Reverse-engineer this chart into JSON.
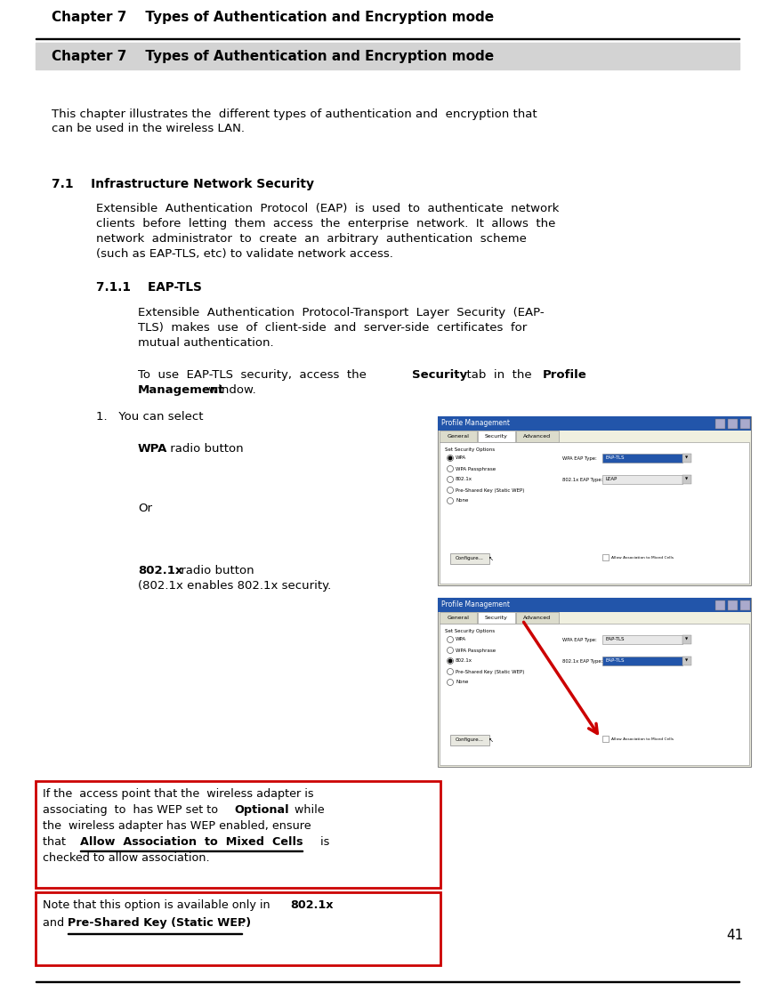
{
  "page_width": 8.71,
  "page_height": 11.14,
  "dpi": 100,
  "bg_color": "#ffffff",
  "header_title": "Chapter 7    Types of Authentication and Encryption mode",
  "chapter_bar_color": "#d3d3d3",
  "chapter_bar_text": "Chapter 7    Types of Authentication and Encryption mode",
  "intro_text_line1": "This chapter illustrates the  different types of authentication and  encryption that",
  "intro_text_line2": "can be used in the wireless LAN.",
  "section_71_title": "7.1    Infrastructure Network Security",
  "section_71_body_lines": [
    "Extensible  Authentication  Protocol  (EAP)  is  used  to  authenticate  network",
    "clients  before  letting  them  access  the  enterprise  network.  It  allows  the",
    "network  administrator  to  create  an  arbitrary  authentication  scheme",
    "(such as EAP-TLS, etc) to validate network access."
  ],
  "section_711_title": "7.1.1    EAP-TLS",
  "section_711_body1_lines": [
    "Extensible  Authentication  Protocol-Transport  Layer  Security  (EAP-",
    "TLS)  makes  use  of  client-side  and  server-side  certificates  for",
    "mutual authentication."
  ],
  "item1_text": "1.   You can select",
  "wpa_label": "WPA",
  "wpa_rest": " radio button",
  "or_text": "Or",
  "dot802_label": "802.1x",
  "dot802_rest": " radio button",
  "dot802_line2": "(802.1x enables 802.1x security.",
  "note1_lines": [
    [
      "normal",
      "If the  access point that the  wireless adapter is"
    ],
    [
      "mixed",
      "associating  to  has WEP set to  ",
      "bold",
      "Optional",
      "normal",
      "  while"
    ],
    [
      "normal",
      "the  wireless adapter has WEP enabled, ensure"
    ],
    [
      "mixed",
      "that   ",
      "bold",
      "Allow  Association  to  Mixed  Cells",
      "normal",
      "  is"
    ],
    [
      "normal",
      "checked to allow association."
    ]
  ],
  "note2_line1_normal": "Note that this option is available only in ",
  "note2_line1_bold": "802.1x",
  "note2_line2_normal": "and ",
  "note2_line2_bold": "Pre-Shared Key (Static WEP)",
  "note2_line2_end": ".",
  "page_num": "41",
  "red_border_color": "#cc0000",
  "blue_bar_color": "#2255aa",
  "dialog_bg": "#f0f0e0",
  "tab_bg": "#dcdccc"
}
